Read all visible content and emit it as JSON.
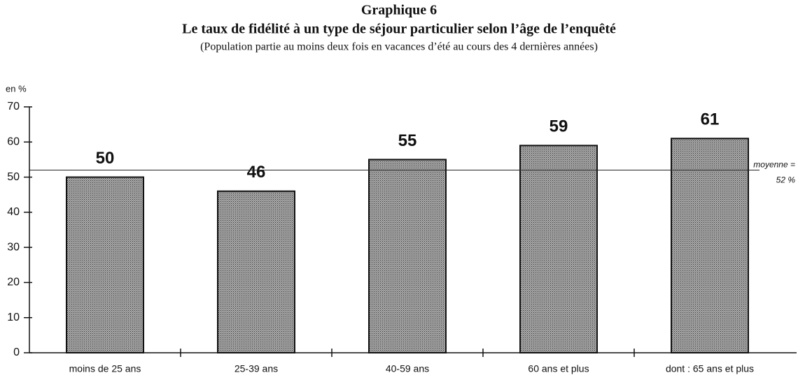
{
  "chart_data": {
    "type": "bar",
    "title": "Graphique 6",
    "subtitle": "Le taux de fidélité à un type de séjour particulier selon l’âge de l’enquêté",
    "note": "(Population partie au moins deux fois en vacances d’été au cours des 4 dernières années)",
    "y_label": "en %",
    "categories": [
      "moins de 25 ans",
      "25-39 ans",
      "40-59 ans",
      "60 ans et plus",
      "dont : 65 ans et plus"
    ],
    "values": [
      50,
      46,
      55,
      59,
      61
    ],
    "color": "#a8a8a8",
    "ylim": [
      0,
      70
    ],
    "yticks": [
      0,
      10,
      20,
      30,
      40,
      50,
      60,
      70
    ],
    "mean_line": {
      "value": 52,
      "label_lines": [
        "moyenne =",
        "52 %"
      ]
    }
  }
}
